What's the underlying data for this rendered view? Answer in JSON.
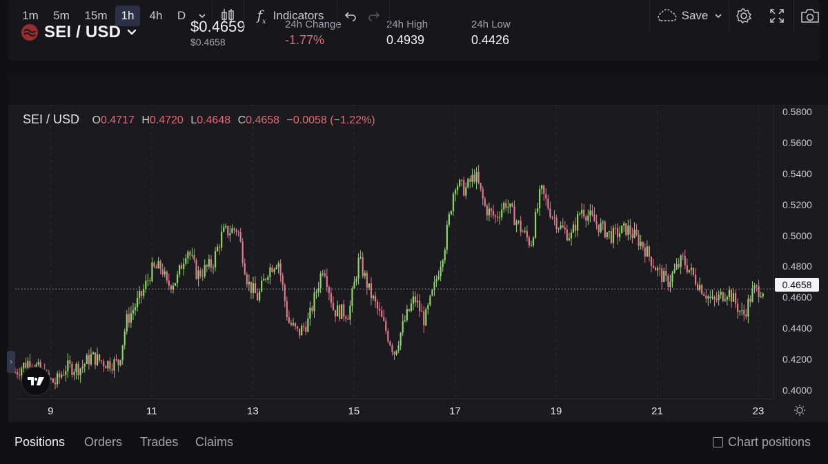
{
  "header": {
    "pair": "SEI / USD",
    "price": "$0.4659",
    "price_sub": "$0.4658",
    "change_label": "24h Change",
    "change_value": "-1.77%",
    "high_label": "24h High",
    "high_value": "0.4939",
    "low_label": "24h Low",
    "low_value": "0.4426"
  },
  "toolbar": {
    "intervals": [
      "1m",
      "5m",
      "15m",
      "1h",
      "4h",
      "D"
    ],
    "active_interval": "1h",
    "indicators_label": "Indicators",
    "save_label": "Save"
  },
  "ohlc": {
    "symbol": "SEI / USD",
    "o_label": "O",
    "o": "0.4717",
    "h_label": "H",
    "h": "0.4720",
    "l_label": "L",
    "l": "0.4648",
    "c_label": "C",
    "c": "0.4658",
    "change": "−0.0058 (−1.22%)"
  },
  "last_price": "0.4658",
  "icons": {
    "pair_logo": "sei-logo-icon",
    "chevron": "chevron-down-icon",
    "candles": "candlestick-icon",
    "fx": "function-icon",
    "undo": "undo-icon",
    "redo": "redo-icon",
    "cloud": "cloud-icon",
    "settings": "gear-icon",
    "fullscreen": "fullscreen-icon",
    "camera": "camera-icon"
  },
  "colors": {
    "up": "#8fd66a",
    "down": "#e07a8c",
    "negative_text": "#e06c7a",
    "background": "#1a1a1f"
  },
  "chart_data": {
    "type": "candlestick",
    "x_ticks": [
      "9",
      "11",
      "13",
      "15",
      "17",
      "19",
      "21",
      "23"
    ],
    "y_ticks": [
      "0.5800",
      "0.5600",
      "0.5400",
      "0.5200",
      "0.5000",
      "0.4800",
      "0.4600",
      "0.4400",
      "0.4200",
      "0.4000"
    ],
    "ylim": [
      0.395,
      0.585
    ],
    "xlim_days": [
      8.3,
      23.3
    ],
    "last_price": 0.4658,
    "path_close": [
      [
        8.3,
        0.412
      ],
      [
        8.6,
        0.42
      ],
      [
        8.9,
        0.408
      ],
      [
        9.1,
        0.405
      ],
      [
        9.3,
        0.415
      ],
      [
        9.6,
        0.415
      ],
      [
        9.8,
        0.422
      ],
      [
        10.1,
        0.418
      ],
      [
        10.35,
        0.418
      ],
      [
        10.5,
        0.445
      ],
      [
        10.8,
        0.462
      ],
      [
        11.0,
        0.478
      ],
      [
        11.2,
        0.48
      ],
      [
        11.3,
        0.468
      ],
      [
        11.5,
        0.472
      ],
      [
        11.7,
        0.493
      ],
      [
        11.9,
        0.475
      ],
      [
        12.2,
        0.482
      ],
      [
        12.4,
        0.502
      ],
      [
        12.7,
        0.505
      ],
      [
        12.9,
        0.47
      ],
      [
        13.1,
        0.46
      ],
      [
        13.3,
        0.478
      ],
      [
        13.5,
        0.485
      ],
      [
        13.7,
        0.445
      ],
      [
        13.9,
        0.437
      ],
      [
        14.1,
        0.445
      ],
      [
        14.4,
        0.482
      ],
      [
        14.6,
        0.452
      ],
      [
        14.9,
        0.45
      ],
      [
        15.1,
        0.485
      ],
      [
        15.3,
        0.465
      ],
      [
        15.5,
        0.45
      ],
      [
        15.8,
        0.425
      ],
      [
        16.0,
        0.445
      ],
      [
        16.2,
        0.46
      ],
      [
        16.4,
        0.445
      ],
      [
        16.6,
        0.468
      ],
      [
        16.8,
        0.495
      ],
      [
        17.0,
        0.535
      ],
      [
        17.2,
        0.53
      ],
      [
        17.4,
        0.54
      ],
      [
        17.6,
        0.518
      ],
      [
        17.8,
        0.512
      ],
      [
        18.0,
        0.522
      ],
      [
        18.3,
        0.505
      ],
      [
        18.5,
        0.495
      ],
      [
        18.7,
        0.53
      ],
      [
        18.9,
        0.515
      ],
      [
        19.1,
        0.505
      ],
      [
        19.3,
        0.5
      ],
      [
        19.5,
        0.518
      ],
      [
        19.8,
        0.508
      ],
      [
        20.1,
        0.5
      ],
      [
        20.4,
        0.505
      ],
      [
        20.7,
        0.495
      ],
      [
        21.0,
        0.478
      ],
      [
        21.2,
        0.47
      ],
      [
        21.5,
        0.485
      ],
      [
        21.8,
        0.47
      ],
      [
        22.1,
        0.457
      ],
      [
        22.4,
        0.465
      ],
      [
        22.7,
        0.448
      ],
      [
        22.9,
        0.465
      ],
      [
        23.1,
        0.4658
      ]
    ]
  },
  "bottom": {
    "tabs": [
      "Positions",
      "Orders",
      "Trades",
      "Claims"
    ],
    "active_tab": "Positions",
    "chart_positions_label": "Chart positions"
  }
}
